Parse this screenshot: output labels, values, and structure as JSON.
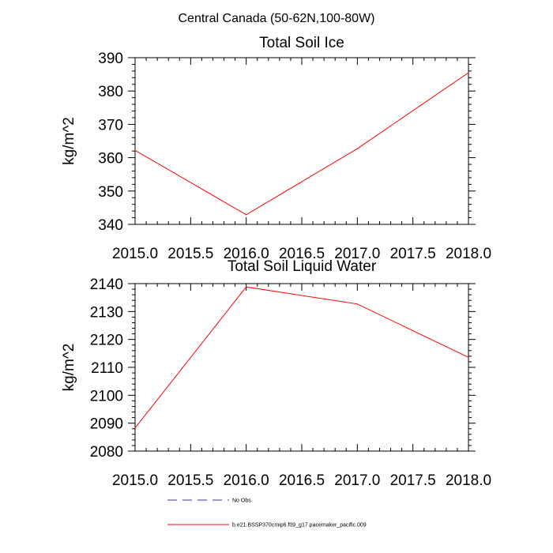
{
  "suptitle": "Central Canada (50-62N,100-80W)",
  "chart_data": [
    {
      "type": "line",
      "title": "Total Soil Ice",
      "xlabel": "",
      "ylabel": "kg/m^2",
      "xlim": [
        2015.0,
        2018.0
      ],
      "ylim": [
        340,
        390
      ],
      "xticks": [
        2015.0,
        2015.5,
        2016.0,
        2016.5,
        2017.0,
        2017.5,
        2018.0
      ],
      "xtick_labels": [
        "2015.0",
        "2015.5",
        "2016.0",
        "2016.5",
        "2017.0",
        "2017.5",
        "2018.0"
      ],
      "yticks": [
        340,
        350,
        360,
        370,
        380,
        390
      ],
      "ytick_labels": [
        "340",
        "350",
        "360",
        "370",
        "380",
        "390"
      ],
      "grid": false,
      "series": [
        {
          "x": [
            2015,
            2016,
            2017,
            2018
          ],
          "values": [
            362.2,
            342.9,
            362.7,
            385.5
          ],
          "color": "#ff0000"
        }
      ]
    },
    {
      "type": "line",
      "title": "Total Soil Liquid Water",
      "xlabel": "",
      "ylabel": "kg/m^2",
      "xlim": [
        2015.0,
        2018.0
      ],
      "ylim": [
        2080,
        2140
      ],
      "xticks": [
        2015.0,
        2015.5,
        2016.0,
        2016.5,
        2017.0,
        2017.5,
        2018.0
      ],
      "xtick_labels": [
        "2015.0",
        "2015.5",
        "2016.0",
        "2016.5",
        "2017.0",
        "2017.5",
        "2018.0"
      ],
      "yticks": [
        2080,
        2090,
        2100,
        2110,
        2120,
        2130,
        2140
      ],
      "ytick_labels": [
        "2080",
        "2090",
        "2100",
        "2110",
        "2120",
        "2130",
        "2140"
      ],
      "grid": false,
      "series": [
        {
          "x": [
            2015,
            2016,
            2017,
            2018
          ],
          "values": [
            2088.3,
            2138.8,
            2132.7,
            2113.6
          ],
          "color": "#ff0000"
        }
      ]
    }
  ],
  "legend": {
    "placement": "bottom",
    "entries": [
      {
        "label": "No Obs",
        "color": "#3333aa",
        "style": "dashed"
      },
      {
        "label": "b.e21.BSSP370cmip6.f09_g17.pacemaker_pacific.009",
        "color": "#ff0000",
        "style": "solid"
      }
    ]
  }
}
